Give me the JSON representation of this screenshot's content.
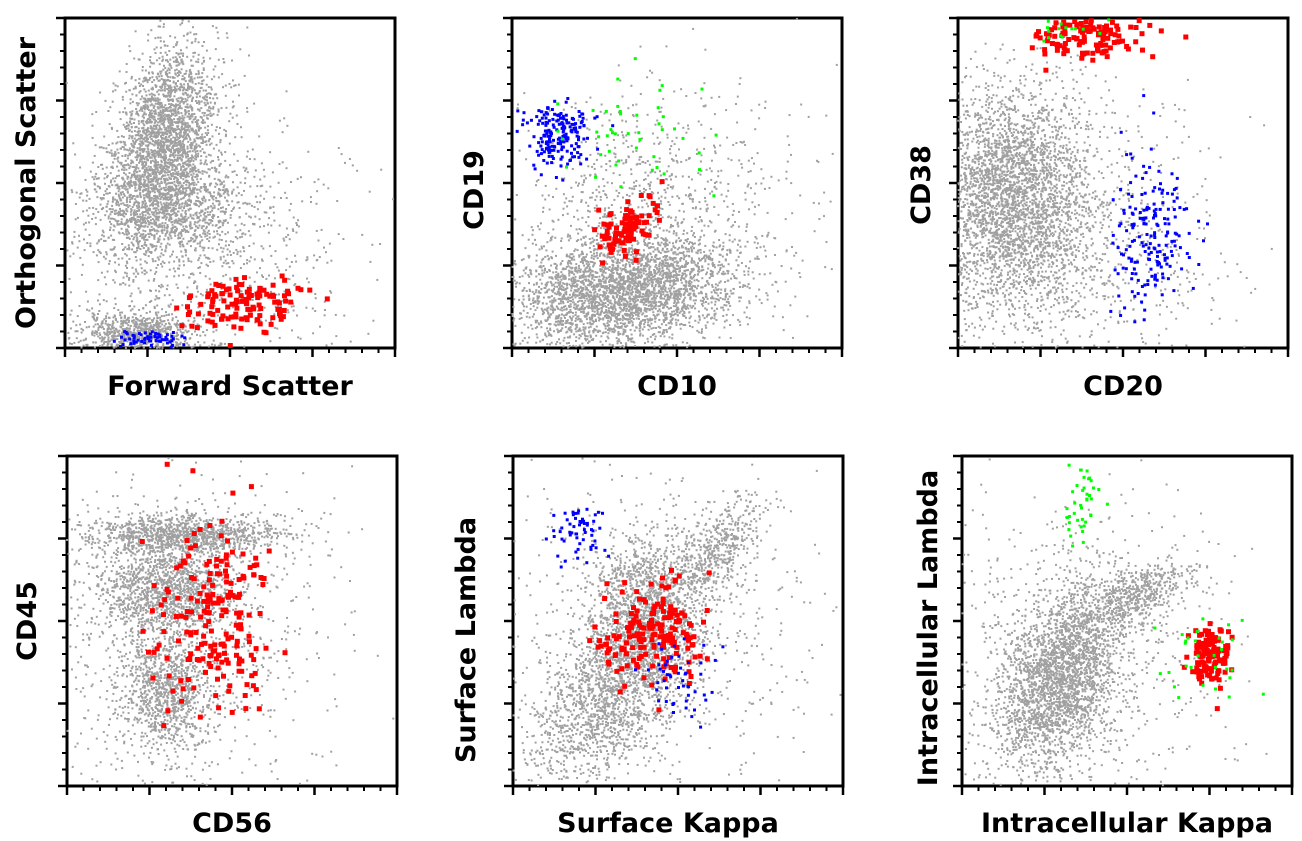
{
  "colors": {
    "background_population": "#a0a0a0",
    "red_population": "#ff0000",
    "blue_population": "#0000ff",
    "green_population": "#00ff00"
  },
  "chart_data": [
    {
      "type": "scatter",
      "xlabel": "Forward Scatter",
      "ylabel": "Orthogonal Scatter",
      "xlim": [
        0,
        1
      ],
      "ylim": [
        0,
        1
      ],
      "grid": false,
      "series": [
        {
          "color": "gray",
          "clusters": [
            {
              "cx": 0.3,
              "cy": 0.62,
              "sx": 0.08,
              "sy": 0.14,
              "n": 2600,
              "tilt": 0.35
            },
            {
              "cx": 0.32,
              "cy": 0.42,
              "sx": 0.12,
              "sy": 0.07,
              "n": 900,
              "tilt": 0.0
            },
            {
              "cx": 0.22,
              "cy": 0.05,
              "sx": 0.09,
              "sy": 0.03,
              "n": 700,
              "tilt": 0.0
            },
            {
              "cx": 0.42,
              "cy": 0.25,
              "sx": 0.22,
              "sy": 0.22,
              "n": 900,
              "tilt": 0.0
            }
          ]
        },
        {
          "color": "red",
          "clusters": [
            {
              "cx": 0.53,
              "cy": 0.13,
              "sx": 0.09,
              "sy": 0.04,
              "n": 120,
              "tilt": 0.3
            }
          ]
        },
        {
          "color": "blue",
          "clusters": [
            {
              "cx": 0.26,
              "cy": 0.03,
              "sx": 0.05,
              "sy": 0.012,
              "n": 60,
              "tilt": 0.2
            }
          ]
        }
      ]
    },
    {
      "type": "scatter",
      "xlabel": "CD10",
      "ylabel": "CD19",
      "xlim": [
        0,
        1
      ],
      "ylim": [
        0,
        1
      ],
      "grid": false,
      "series": [
        {
          "color": "gray",
          "clusters": [
            {
              "cx": 0.33,
              "cy": 0.17,
              "sx": 0.17,
              "sy": 0.08,
              "n": 3000,
              "tilt": 0.25
            },
            {
              "cx": 0.4,
              "cy": 0.4,
              "sx": 0.22,
              "sy": 0.2,
              "n": 1000,
              "tilt": 0.0
            }
          ]
        },
        {
          "color": "red",
          "clusters": [
            {
              "cx": 0.34,
              "cy": 0.36,
              "sx": 0.05,
              "sy": 0.04,
              "n": 90,
              "tilt": 0.5
            }
          ]
        },
        {
          "color": "blue",
          "clusters": [
            {
              "cx": 0.14,
              "cy": 0.65,
              "sx": 0.05,
              "sy": 0.05,
              "n": 190,
              "tilt": 0.0
            }
          ]
        },
        {
          "color": "green",
          "clusters": [
            {
              "cx": 0.36,
              "cy": 0.65,
              "sx": 0.1,
              "sy": 0.08,
              "n": 45,
              "tilt": 0.0
            }
          ]
        }
      ]
    },
    {
      "type": "scatter",
      "xlabel": "CD20",
      "ylabel": "CD38",
      "xlim": [
        0,
        1
      ],
      "ylim": [
        0,
        1
      ],
      "grid": false,
      "series": [
        {
          "color": "gray",
          "clusters": [
            {
              "cx": 0.17,
              "cy": 0.45,
              "sx": 0.12,
              "sy": 0.17,
              "n": 3200,
              "tilt": 0.0
            },
            {
              "cx": 0.3,
              "cy": 0.3,
              "sx": 0.25,
              "sy": 0.22,
              "n": 900,
              "tilt": 0.0
            }
          ]
        },
        {
          "color": "red",
          "clusters": [
            {
              "cx": 0.38,
              "cy": 0.94,
              "sx": 0.1,
              "sy": 0.035,
              "n": 120,
              "tilt": 0.0
            }
          ]
        },
        {
          "color": "blue",
          "clusters": [
            {
              "cx": 0.58,
              "cy": 0.33,
              "sx": 0.06,
              "sy": 0.12,
              "n": 190,
              "tilt": 0.0
            }
          ]
        },
        {
          "color": "green",
          "clusters": [
            {
              "cx": 0.32,
              "cy": 0.96,
              "sx": 0.08,
              "sy": 0.02,
              "n": 15,
              "tilt": 0.0
            }
          ]
        }
      ]
    },
    {
      "type": "scatter",
      "xlabel": "CD56",
      "ylabel": "CD45",
      "xlim": [
        0,
        1
      ],
      "ylim": [
        0,
        1
      ],
      "grid": false,
      "series": [
        {
          "color": "gray",
          "clusters": [
            {
              "cx": 0.35,
              "cy": 0.76,
              "sx": 0.15,
              "sy": 0.03,
              "n": 1100,
              "tilt": 0.0
            },
            {
              "cx": 0.3,
              "cy": 0.6,
              "sx": 0.1,
              "sy": 0.07,
              "n": 1200,
              "tilt": 0.0
            },
            {
              "cx": 0.3,
              "cy": 0.28,
              "sx": 0.07,
              "sy": 0.09,
              "n": 900,
              "tilt": 0.0
            },
            {
              "cx": 0.35,
              "cy": 0.45,
              "sx": 0.22,
              "sy": 0.25,
              "n": 1000,
              "tilt": 0.0
            }
          ]
        },
        {
          "color": "red",
          "clusters": [
            {
              "cx": 0.45,
              "cy": 0.5,
              "sx": 0.09,
              "sy": 0.16,
              "n": 200,
              "tilt": 0.0
            }
          ]
        }
      ]
    },
    {
      "type": "scatter",
      "xlabel": "Surface Kappa",
      "ylabel": "Surface Lambda",
      "xlim": [
        0,
        1
      ],
      "ylim": [
        0,
        1
      ],
      "grid": false,
      "series": [
        {
          "color": "gray",
          "clusters": [
            {
              "cx": 0.3,
              "cy": 0.28,
              "sx": 0.12,
              "sy": 0.12,
              "n": 1600,
              "tilt": 0.7
            },
            {
              "cx": 0.4,
              "cy": 0.52,
              "sx": 0.08,
              "sy": 0.12,
              "n": 1400,
              "tilt": 0.0
            },
            {
              "cx": 0.62,
              "cy": 0.72,
              "sx": 0.07,
              "sy": 0.06,
              "n": 500,
              "tilt": 0.8
            },
            {
              "cx": 0.42,
              "cy": 0.45,
              "sx": 0.25,
              "sy": 0.25,
              "n": 700,
              "tilt": 0.0
            }
          ]
        },
        {
          "color": "red",
          "clusters": [
            {
              "cx": 0.42,
              "cy": 0.46,
              "sx": 0.07,
              "sy": 0.07,
              "n": 180,
              "tilt": 0.0
            }
          ]
        },
        {
          "color": "blue",
          "clusters": [
            {
              "cx": 0.2,
              "cy": 0.77,
              "sx": 0.04,
              "sy": 0.05,
              "n": 60,
              "tilt": 0.0
            },
            {
              "cx": 0.5,
              "cy": 0.32,
              "sx": 0.06,
              "sy": 0.06,
              "n": 50,
              "tilt": 0.0
            }
          ]
        }
      ]
    },
    {
      "type": "scatter",
      "xlabel": "Intracellular Kappa",
      "ylabel": "Intracellular Lambda",
      "xlim": [
        0,
        1
      ],
      "ylim": [
        0,
        1
      ],
      "grid": false,
      "series": [
        {
          "color": "gray",
          "clusters": [
            {
              "cx": 0.3,
              "cy": 0.33,
              "sx": 0.1,
              "sy": 0.13,
              "n": 2600,
              "tilt": 0.5
            },
            {
              "cx": 0.52,
              "cy": 0.58,
              "sx": 0.09,
              "sy": 0.04,
              "n": 500,
              "tilt": 0.8
            },
            {
              "cx": 0.35,
              "cy": 0.4,
              "sx": 0.25,
              "sy": 0.25,
              "n": 700,
              "tilt": 0.0
            }
          ]
        },
        {
          "color": "red",
          "clusters": [
            {
              "cx": 0.75,
              "cy": 0.4,
              "sx": 0.03,
              "sy": 0.05,
              "n": 120,
              "tilt": 0.0
            }
          ]
        },
        {
          "color": "green",
          "clusters": [
            {
              "cx": 0.37,
              "cy": 0.85,
              "sx": 0.03,
              "sy": 0.07,
              "n": 40,
              "tilt": 0.0
            },
            {
              "cx": 0.75,
              "cy": 0.4,
              "sx": 0.08,
              "sy": 0.08,
              "n": 30,
              "tilt": 0.0
            }
          ]
        }
      ]
    }
  ]
}
